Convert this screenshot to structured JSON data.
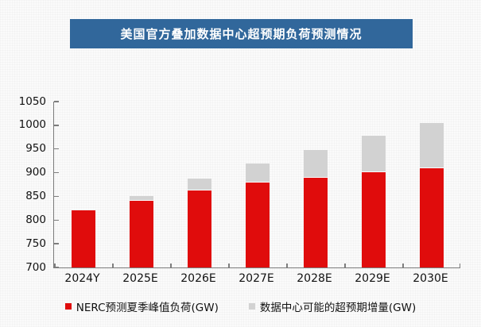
{
  "header": {
    "title": "美国官方叠加数据中心超预期负荷预测情况"
  },
  "colors": {
    "header_bg": "#31679B",
    "header_text": "#FFFFFF",
    "bar_red": "#E00C0C",
    "bar_gray": "#D2D2D2",
    "axis": "#7D7D7D",
    "background": "#FBFBFB",
    "text": "#111111"
  },
  "chart_data": {
    "type": "bar",
    "subtype": "stacked-vertical",
    "title": "美国官方叠加数据中心超预期负荷预测情况",
    "categories": [
      "2024Y",
      "2025E",
      "2026E",
      "2027E",
      "2028E",
      "2029E",
      "2030E"
    ],
    "series": [
      {
        "name": "NERC预测夏季峰值负荷(GW)",
        "color": "#E00C0C",
        "values": [
          820,
          841,
          862,
          879,
          890,
          901,
          909
        ]
      },
      {
        "name": "数据中心可能的超预期增量(GW)",
        "color": "#D2D2D2",
        "values": [
          0,
          9,
          26,
          41,
          58,
          77,
          95
        ]
      }
    ],
    "stacked_totals": [
      820,
      850,
      888,
      920,
      948,
      978,
      1004
    ],
    "xlabel": "",
    "ylabel": "",
    "unit": "GW",
    "ylim": [
      700,
      1050
    ],
    "ytick_step": 50,
    "ytick_labels": [
      "700",
      "750",
      "800",
      "850",
      "900",
      "950",
      "1000",
      "1050"
    ],
    "grid": false,
    "legend_position": "bottom"
  }
}
